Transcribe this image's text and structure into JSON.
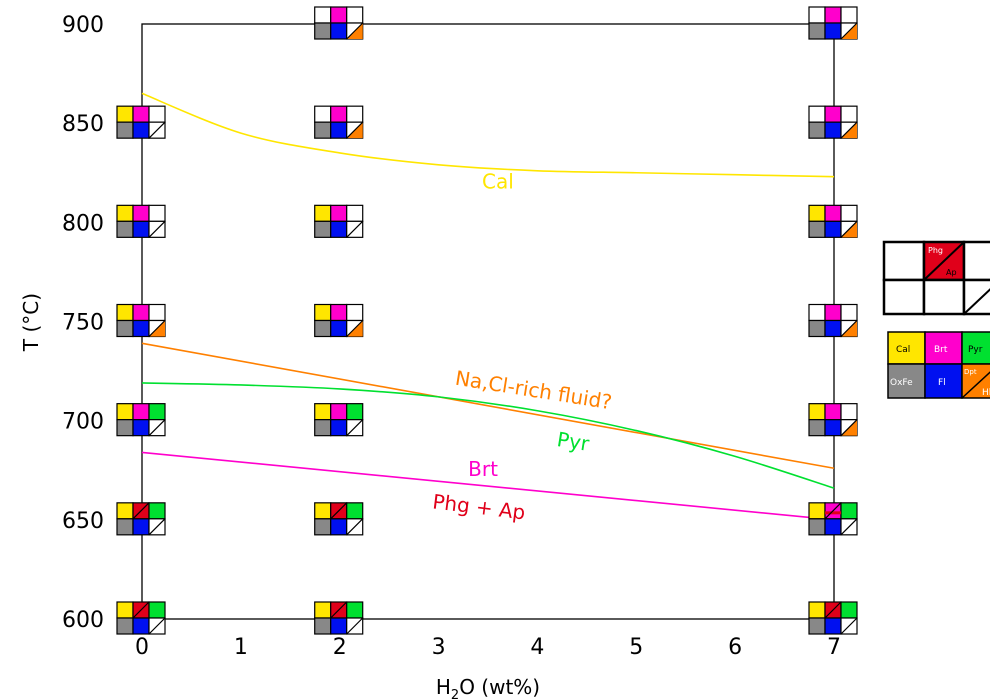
{
  "chart_data": {
    "type": "line",
    "xlabel": {
      "prefix": "H",
      "sub": "2",
      "suffix": "O (wt%)"
    },
    "ylabel": "T (°C)",
    "xlim": [
      0,
      7
    ],
    "ylim": [
      600,
      900
    ],
    "xticks": [
      "0",
      "1",
      "2",
      "3",
      "4",
      "5",
      "6",
      "7"
    ],
    "yticks": [
      "600",
      "650",
      "700",
      "750",
      "800",
      "850",
      "900"
    ],
    "series": [
      {
        "name": "Cal",
        "color": "#ffe600",
        "points": [
          [
            0,
            865
          ],
          [
            1,
            845
          ],
          [
            2,
            835
          ],
          [
            3,
            829
          ],
          [
            4,
            826
          ],
          [
            5,
            825
          ],
          [
            6,
            824
          ],
          [
            7,
            823
          ]
        ]
      },
      {
        "name": "Na,Cl-rich fluid?",
        "color": "#ff8000",
        "points": [
          [
            0,
            739
          ],
          [
            7,
            676
          ]
        ]
      },
      {
        "name": "Pyr",
        "color": "#00e030",
        "points": [
          [
            0,
            719
          ],
          [
            1,
            718
          ],
          [
            2,
            716
          ],
          [
            3,
            712
          ],
          [
            4,
            705
          ],
          [
            5,
            695
          ],
          [
            6,
            682
          ],
          [
            7,
            666
          ]
        ]
      },
      {
        "name": "Brt",
        "color": "#ff00cc",
        "points": [
          [
            0,
            684
          ],
          [
            7,
            650
          ]
        ]
      }
    ],
    "labels": [
      {
        "text": "Cal",
        "color": "#ffe600",
        "at": [
          3.6,
          817
        ],
        "rot": 0
      },
      {
        "text": "Na,Cl-rich fluid?",
        "color": "#ff8000",
        "at": [
          3.95,
          712
        ],
        "rot": 9
      },
      {
        "text": "Pyr",
        "color": "#00e030",
        "at": [
          4.35,
          686
        ],
        "rot": 9
      },
      {
        "text": "Brt",
        "color": "#ff00cc",
        "at": [
          3.45,
          672
        ],
        "rot": 0
      },
      {
        "text": "Phg + Ap",
        "color": "#e0001a",
        "at": [
          3.4,
          653
        ],
        "rot": 7
      }
    ],
    "phase_symbols": {
      "colors": {
        "cal": "#ffe600",
        "brt": "#ff00cc",
        "pyr": "#00e030",
        "oxfe": "#888888",
        "fl": "#0010f0",
        "dpt": "#ff8000",
        "phg": "#e0001a",
        "ap": "#e0001a"
      },
      "points": [
        {
          "x": 2,
          "y": 900,
          "cal": 0,
          "brt": 1,
          "pyr": 0,
          "oxfe": 1,
          "fl": 1,
          "dpt": 1,
          "phg": 0
        },
        {
          "x": 7,
          "y": 900,
          "cal": 0,
          "brt": 1,
          "pyr": 0,
          "oxfe": 1,
          "fl": 1,
          "dpt": 1,
          "phg": 0
        },
        {
          "x": 0,
          "y": 850,
          "cal": 1,
          "brt": 1,
          "pyr": 0,
          "oxfe": 1,
          "fl": 1,
          "dpt": 0,
          "phg": 0
        },
        {
          "x": 2,
          "y": 850,
          "cal": 0,
          "brt": 1,
          "pyr": 0,
          "oxfe": 1,
          "fl": 1,
          "dpt": 1,
          "phg": 0
        },
        {
          "x": 7,
          "y": 850,
          "cal": 0,
          "brt": 1,
          "pyr": 0,
          "oxfe": 1,
          "fl": 1,
          "dpt": 1,
          "phg": 0
        },
        {
          "x": 0,
          "y": 800,
          "cal": 1,
          "brt": 1,
          "pyr": 0,
          "oxfe": 1,
          "fl": 1,
          "dpt": 0,
          "phg": 0
        },
        {
          "x": 2,
          "y": 800,
          "cal": 1,
          "brt": 1,
          "pyr": 0,
          "oxfe": 1,
          "fl": 1,
          "dpt": 0,
          "phg": 0
        },
        {
          "x": 7,
          "y": 800,
          "cal": 1,
          "brt": 1,
          "pyr": 0,
          "oxfe": 1,
          "fl": 1,
          "dpt": 1,
          "phg": 0
        },
        {
          "x": 0,
          "y": 750,
          "cal": 1,
          "brt": 1,
          "pyr": 0,
          "oxfe": 1,
          "fl": 1,
          "dpt": 1,
          "phg": 0
        },
        {
          "x": 2,
          "y": 750,
          "cal": 1,
          "brt": 1,
          "pyr": 0,
          "oxfe": 1,
          "fl": 1,
          "dpt": 1,
          "phg": 0
        },
        {
          "x": 7,
          "y": 750,
          "cal": 0,
          "brt": 1,
          "pyr": 0,
          "oxfe": 1,
          "fl": 1,
          "dpt": 1,
          "phg": 0
        },
        {
          "x": 0,
          "y": 700,
          "cal": 1,
          "brt": 1,
          "pyr": 1,
          "oxfe": 1,
          "fl": 1,
          "dpt": 0,
          "phg": 0
        },
        {
          "x": 2,
          "y": 700,
          "cal": 1,
          "brt": 1,
          "pyr": 1,
          "oxfe": 1,
          "fl": 1,
          "dpt": 0,
          "phg": 0
        },
        {
          "x": 7,
          "y": 700,
          "cal": 1,
          "brt": 1,
          "pyr": 0,
          "oxfe": 1,
          "fl": 1,
          "dpt": 1,
          "phg": 0
        },
        {
          "x": 0,
          "y": 650,
          "cal": 1,
          "brt": 0,
          "pyr": 1,
          "oxfe": 1,
          "fl": 1,
          "dpt": 0,
          "phg": 1
        },
        {
          "x": 2,
          "y": 650,
          "cal": 1,
          "brt": 0,
          "pyr": 1,
          "oxfe": 1,
          "fl": 1,
          "dpt": 0,
          "phg": 1
        },
        {
          "x": 7,
          "y": 650,
          "cal": 1,
          "brt": 1,
          "pyr": 1,
          "oxfe": 1,
          "fl": 1,
          "dpt": 0,
          "phg": 1
        },
        {
          "x": 0,
          "y": 600,
          "cal": 1,
          "brt": 0,
          "pyr": 1,
          "oxfe": 1,
          "fl": 1,
          "dpt": 0,
          "phg": 1
        },
        {
          "x": 2,
          "y": 600,
          "cal": 1,
          "brt": 0,
          "pyr": 1,
          "oxfe": 1,
          "fl": 1,
          "dpt": 0,
          "phg": 1
        },
        {
          "x": 7,
          "y": 600,
          "cal": 1,
          "brt": 0,
          "pyr": 1,
          "oxfe": 1,
          "fl": 1,
          "dpt": 0,
          "phg": 1
        }
      ]
    },
    "legend": {
      "placement": "right",
      "key_labels": {
        "phg": "Phg",
        "ap": "Ap"
      },
      "cells": {
        "cal": "Cal",
        "brt": "Brt",
        "pyr": "Pyr",
        "oxfe": "OxFe",
        "fl": "Fl",
        "dpt": "Dpt",
        "hl": "Hl"
      }
    }
  }
}
